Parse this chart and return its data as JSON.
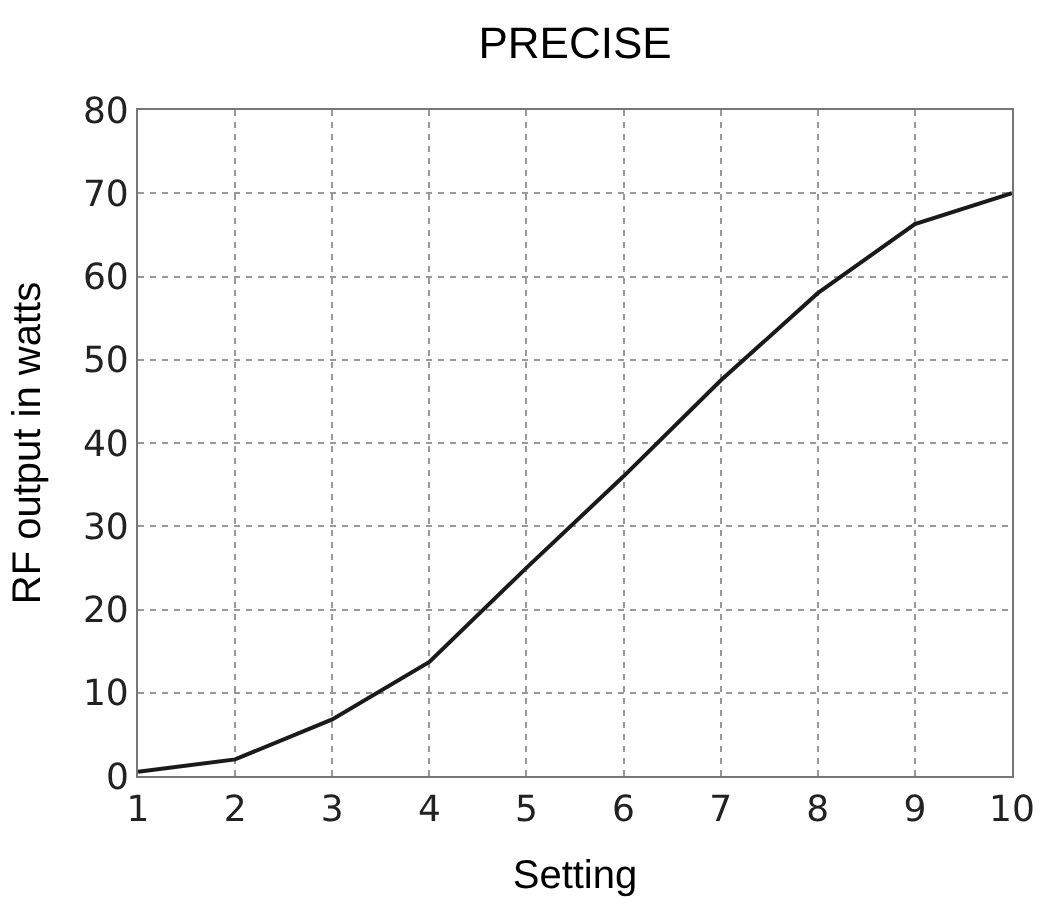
{
  "chart_data": {
    "type": "line",
    "title": "PRECISE",
    "xlabel": "Setting",
    "ylabel": "RF output in watts",
    "x": [
      1,
      2,
      3,
      4,
      5,
      6,
      7,
      8,
      9,
      10
    ],
    "series": [
      {
        "color": "#1a1a1a",
        "values": [
          0.5,
          2,
          6.8,
          13.7,
          25,
          36,
          47.5,
          58,
          66.3,
          70
        ]
      }
    ],
    "xlim": [
      1,
      10
    ],
    "xticks": [
      1,
      2,
      3,
      4,
      5,
      6,
      7,
      8,
      9,
      10
    ],
    "ylim": [
      0,
      80
    ],
    "yticks": [
      0,
      10,
      20,
      30,
      40,
      50,
      60,
      70,
      80
    ],
    "grid": true,
    "marker": "none",
    "line_style": "solid"
  }
}
